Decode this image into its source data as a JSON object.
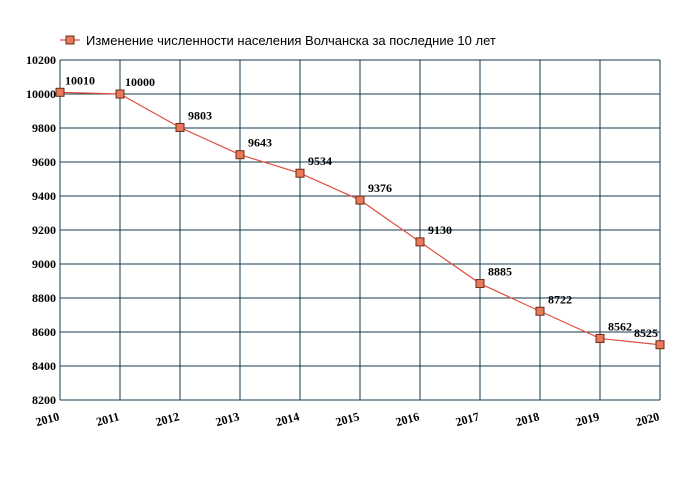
{
  "chart_data": {
    "type": "line",
    "title": "Изменение численности населения Волчанска за последние 10 лет",
    "x": [
      "2010",
      "2011",
      "2012",
      "2013",
      "2014",
      "2015",
      "2016",
      "2017",
      "2018",
      "2019",
      "2020"
    ],
    "series": [
      {
        "name": "Изменение численности населения Волчанска за последние 10 лет",
        "values": [
          10010,
          10000,
          9803,
          9643,
          9534,
          9376,
          9130,
          8885,
          8722,
          8562,
          8525
        ]
      }
    ],
    "ylim": [
      8200,
      10200
    ],
    "yticks": [
      8200,
      8400,
      8600,
      8800,
      9000,
      9200,
      9400,
      9600,
      9800,
      10000,
      10200
    ],
    "grid": true,
    "legend": "top",
    "colors": {
      "line": "#e05040",
      "marker_fill": "#e87a5a",
      "marker_stroke": "#6a2a1a",
      "grid": "#1a3a4a"
    }
  }
}
